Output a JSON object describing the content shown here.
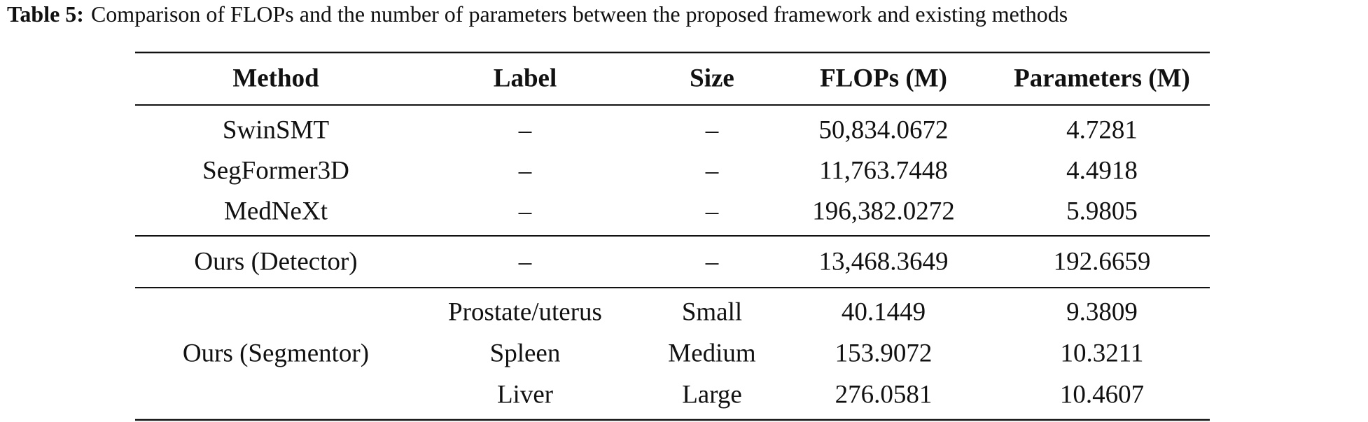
{
  "caption": {
    "label": "Table 5:",
    "text": "Comparison of FLOPs and the number of parameters between the proposed framework and existing methods"
  },
  "table": {
    "header": [
      "Method",
      "Label",
      "Size",
      "FLOPs (M)",
      "Parameters (M)"
    ],
    "sections": [
      {
        "rows": [
          [
            "SwinSMT",
            "–",
            "–",
            "50,834.0672",
            "4.7281"
          ],
          [
            "SegFormer3D",
            "–",
            "–",
            "11,763.7448",
            "4.4918"
          ],
          [
            "MedNeXt",
            "–",
            "–",
            "196,382.0272",
            "5.9805"
          ]
        ]
      },
      {
        "rows": [
          [
            "Ours (Detector)",
            "–",
            "–",
            "13,468.3649",
            "192.6659"
          ]
        ]
      },
      {
        "method": "Ours (Segmentor)",
        "rows": [
          [
            "Prostate/uterus",
            "Small",
            "40.1449",
            "9.3809"
          ],
          [
            "Spleen",
            "Medium",
            "153.9072",
            "10.3211"
          ],
          [
            "Liver",
            "Large",
            "276.0581",
            "10.4607"
          ]
        ]
      }
    ]
  }
}
